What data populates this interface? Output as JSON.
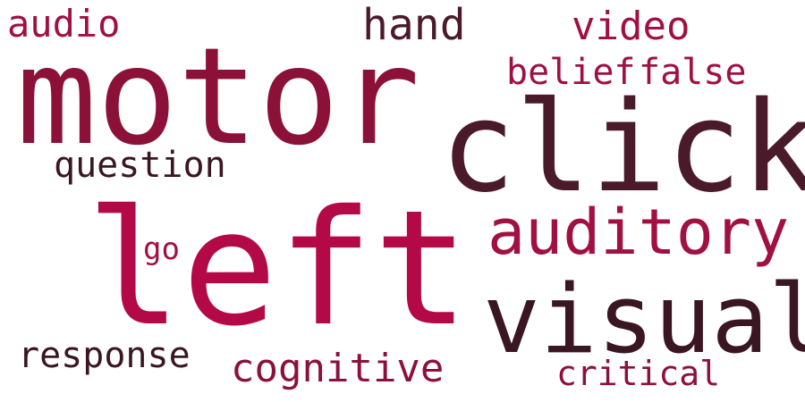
{
  "wordcloud": {
    "background": "#ffffff",
    "palette": {
      "crimson": "#b30a47",
      "wine": "#8c1139",
      "maroon": "#a01041",
      "plum": "#4a1a2a",
      "dark": "#3a1622"
    },
    "words": [
      {
        "id": "motor",
        "text": "motor",
        "color": "#8c1139"
      },
      {
        "id": "click",
        "text": "click",
        "color": "#4a1a2a"
      },
      {
        "id": "left",
        "text": "left",
        "color": "#b30a47"
      },
      {
        "id": "visual",
        "text": "visual",
        "color": "#3a1622"
      },
      {
        "id": "auditory",
        "text": "auditory",
        "color": "#a01041"
      },
      {
        "id": "belief",
        "text": "belief",
        "color": "#a01041"
      },
      {
        "id": "false",
        "text": "false",
        "color": "#a01041"
      },
      {
        "id": "audio",
        "text": "audio",
        "color": "#a01041"
      },
      {
        "id": "hand",
        "text": "hand",
        "color": "#4a1a2a"
      },
      {
        "id": "video",
        "text": "video",
        "color": "#a01041"
      },
      {
        "id": "question",
        "text": "question",
        "color": "#3a1622"
      },
      {
        "id": "go",
        "text": "go",
        "color": "#a01041"
      },
      {
        "id": "cognitive",
        "text": "cognitive",
        "color": "#8c1139"
      },
      {
        "id": "response",
        "text": "response",
        "color": "#3a1622"
      },
      {
        "id": "critical",
        "text": "critical",
        "color": "#8c1139"
      }
    ]
  }
}
